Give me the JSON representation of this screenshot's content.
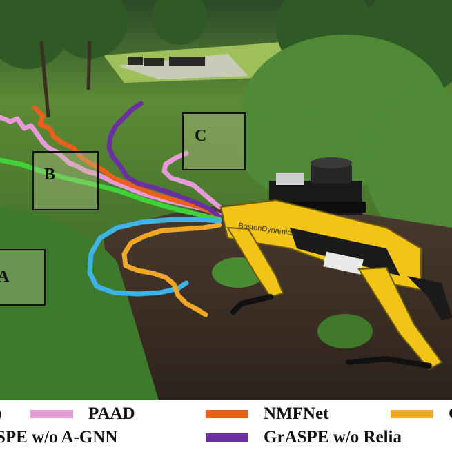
{
  "colors": {
    "sky": "#2e4a2a",
    "lawn": "#6f9a3c",
    "mulch": "#3b2e26",
    "foliage": "#3f6f2c",
    "robot_yellow": "#f2c416",
    "path_pink": "#e79ad8",
    "path_orange": "#e8601a",
    "path_green": "#3fd33a",
    "path_purple": "#6a2fa0",
    "path_cyan": "#3fb3e6",
    "path_gold": "#f0a626"
  },
  "scene": {
    "labels": {
      "a": "A",
      "b": "B",
      "c": "C"
    },
    "robot_brand": "BostonDynamics"
  },
  "legend": {
    "first_partial": ")",
    "paad": "PAAD",
    "nmfnet": "NMFNet",
    "g_partial": "G",
    "grasp_partial": "SPE w/o A-GNN",
    "grasp_reli": "GrASPE w/o Relia"
  }
}
